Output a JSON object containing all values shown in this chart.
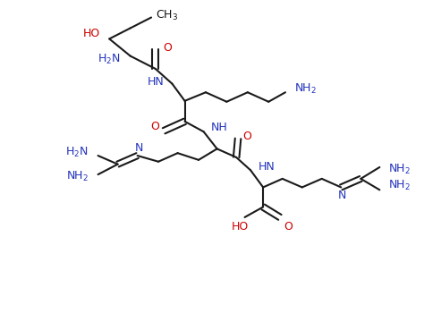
{
  "bg_color": "#ffffff",
  "bond_color": "#1a1a1a",
  "red_color": "#cc0000",
  "blue_color": "#2233bb",
  "black_color": "#111111",
  "figsize": [
    4.74,
    3.5
  ],
  "dpi": 100,
  "xlim": [
    -0.5,
    9.5
  ],
  "ylim": [
    3.0,
    10.2
  ],
  "lw": 1.5
}
